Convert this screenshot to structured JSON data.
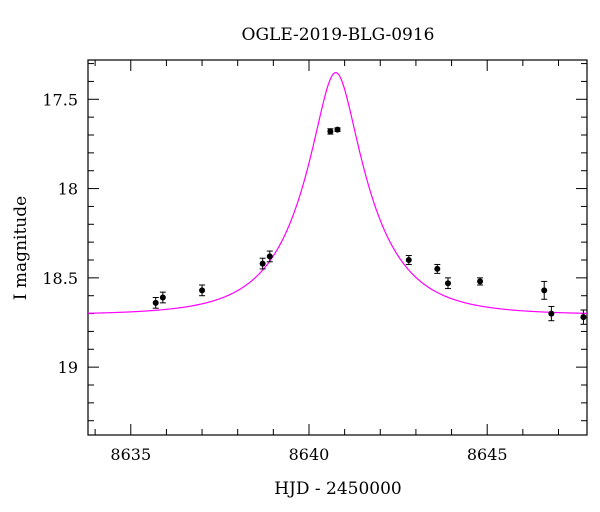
{
  "chart_data": {
    "type": "scatter",
    "title": "OGLE-2019-BLG-0916",
    "xlabel": "HJD - 2450000",
    "ylabel": "I magnitude",
    "xlim": [
      8633.8,
      8647.8
    ],
    "ylim": [
      19.38,
      17.28
    ],
    "y_inverted": true,
    "grid": false,
    "xticks": [
      8635,
      8640,
      8645
    ],
    "xtick_labels": [
      "8635",
      "8640",
      "8645"
    ],
    "yticks": [
      17.5,
      18,
      18.5,
      19
    ],
    "ytick_labels": [
      "17.5",
      "18",
      "18.5",
      "19"
    ],
    "series": [
      {
        "kind": "points_with_errorbars",
        "color": "#000000",
        "points": [
          {
            "x": 8635.7,
            "y": 18.64,
            "err": 0.03
          },
          {
            "x": 8635.9,
            "y": 18.61,
            "err": 0.03
          },
          {
            "x": 8637.0,
            "y": 18.57,
            "err": 0.03
          },
          {
            "x": 8638.7,
            "y": 18.42,
            "err": 0.03
          },
          {
            "x": 8638.9,
            "y": 18.38,
            "err": 0.03
          },
          {
            "x": 8640.6,
            "y": 17.68,
            "err": 0.015
          },
          {
            "x": 8640.8,
            "y": 17.67,
            "err": 0.01
          },
          {
            "x": 8642.8,
            "y": 18.4,
            "err": 0.025
          },
          {
            "x": 8643.6,
            "y": 18.45,
            "err": 0.025
          },
          {
            "x": 8643.9,
            "y": 18.53,
            "err": 0.03
          },
          {
            "x": 8644.8,
            "y": 18.52,
            "err": 0.02
          },
          {
            "x": 8646.6,
            "y": 18.57,
            "err": 0.05
          },
          {
            "x": 8646.8,
            "y": 18.7,
            "err": 0.04
          },
          {
            "x": 8647.7,
            "y": 18.72,
            "err": 0.04
          }
        ]
      },
      {
        "kind": "model_curve",
        "color": "#ff00ff",
        "model": {
          "t0": 8640.75,
          "u0": 0.296,
          "tE": 1.87,
          "baseline_mag": 18.707
        }
      }
    ]
  }
}
